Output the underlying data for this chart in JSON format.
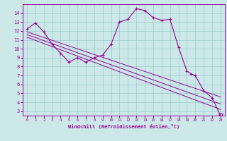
{
  "xlabel": "Windchill (Refroidissement éolien,°C)",
  "bg_color": "#cce8e8",
  "grid_color": "#99cccc",
  "line_color": "#990099",
  "hours": [
    0,
    1,
    2,
    3,
    4,
    5,
    6,
    7,
    8,
    9,
    10,
    11,
    12,
    13,
    14,
    15,
    16,
    17,
    18,
    19,
    19.5,
    20,
    21,
    22,
    23
  ],
  "windchill": [
    12.2,
    12.9,
    11.9,
    10.5,
    9.5,
    8.5,
    9.0,
    8.5,
    9.0,
    9.3,
    10.5,
    13.0,
    13.3,
    14.5,
    14.3,
    13.5,
    13.2,
    13.3,
    10.2,
    7.5,
    7.2,
    7.0,
    5.3,
    4.5,
    2.5
  ],
  "trend1_start": 11.9,
  "trend1_end": 4.6,
  "trend2_start": 11.6,
  "trend2_end": 3.8,
  "trend3_start": 11.3,
  "trend3_end": 3.2,
  "ylim": [
    2.5,
    15.0
  ],
  "xlim": [
    -0.5,
    23.5
  ],
  "yticks": [
    3,
    4,
    5,
    6,
    7,
    8,
    9,
    10,
    11,
    12,
    13,
    14
  ],
  "xticks": [
    0,
    1,
    2,
    3,
    4,
    5,
    6,
    7,
    8,
    9,
    10,
    11,
    12,
    13,
    14,
    15,
    16,
    17,
    18,
    19,
    20,
    21,
    22,
    23
  ],
  "xtick_labels": [
    "0",
    "1",
    "2",
    "3",
    "4",
    "5",
    "6",
    "7",
    "8",
    "9",
    "10",
    "11",
    "12",
    "13",
    "14",
    "15",
    "16",
    "17",
    "18",
    "19",
    "20",
    "21",
    "22",
    "23"
  ]
}
